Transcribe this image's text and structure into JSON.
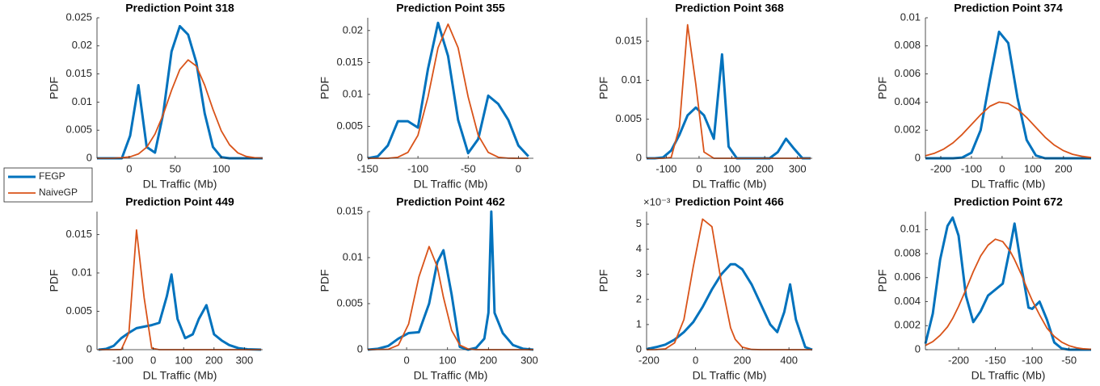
{
  "chart_data": [
    {
      "type": "line",
      "title": "Prediction Point 318",
      "xlabel": "DL Traffic (Mb)",
      "ylabel": "PDF",
      "x": [
        -35,
        -26,
        -17,
        -8,
        1,
        10,
        19,
        28,
        37,
        46,
        55,
        64,
        73,
        82,
        91,
        100,
        109,
        118,
        127,
        136,
        145
      ],
      "xlim": [
        -35,
        145
      ],
      "xticks": [
        0,
        50,
        100
      ],
      "ylim": [
        0,
        0.025
      ],
      "yticks": [
        0,
        0.005,
        0.01,
        0.015,
        0.02,
        0.025
      ],
      "series": [
        {
          "name": "FEGP",
          "color": "#0072bd",
          "values": [
            0,
            0,
            0,
            0,
            0.004,
            0.013,
            0.002,
            0.001,
            0.008,
            0.019,
            0.0235,
            0.022,
            0.017,
            0.008,
            0.002,
            0.0002,
            0,
            0,
            0,
            0,
            0
          ]
        },
        {
          "name": "NaiveGP",
          "color": "#d95319",
          "values": [
            0,
            0,
            1e-05,
            0.0001,
            0.00026,
            0.00077,
            0.00196,
            0.0043,
            0.0078,
            0.0121,
            0.0158,
            0.0175,
            0.0164,
            0.013,
            0.0087,
            0.0049,
            0.0024,
            0.00096,
            0.00033,
            0.0001,
            3e-05
          ]
        }
      ]
    },
    {
      "type": "line",
      "title": "Prediction Point 355",
      "xlabel": "DL Traffic (Mb)",
      "ylabel": "PDF",
      "x": [
        -150,
        -140,
        -130,
        -120,
        -110,
        -100,
        -90,
        -80,
        -70,
        -60,
        -50,
        -40,
        -30,
        -20,
        -10,
        0,
        10
      ],
      "xlim": [
        -150,
        15
      ],
      "xticks": [
        -150,
        -100,
        -50,
        0
      ],
      "ylim": [
        0,
        0.022
      ],
      "yticks": [
        0,
        0.005,
        0.01,
        0.015,
        0.02
      ],
      "series": [
        {
          "name": "FEGP",
          "color": "#0072bd",
          "values": [
            0,
            0.0003,
            0.002,
            0.0058,
            0.0058,
            0.0048,
            0.014,
            0.0212,
            0.016,
            0.006,
            0.0008,
            0.003,
            0.0098,
            0.0085,
            0.006,
            0.002,
            0.0003
          ]
        },
        {
          "name": "NaiveGP",
          "color": "#d95319",
          "values": [
            0,
            0,
            0,
            0.00016,
            0.00092,
            0.0036,
            0.0096,
            0.0173,
            0.021,
            0.0173,
            0.0096,
            0.0036,
            0.00092,
            0.00016,
            2e-05,
            0,
            0
          ]
        }
      ]
    },
    {
      "type": "line",
      "title": "Prediction Point 368",
      "xlabel": "DL Traffic (Mb)",
      "ylabel": "PDF",
      "x": [
        -160,
        -135,
        -110,
        -85,
        -60,
        -35,
        -10,
        15,
        45,
        70,
        90,
        115,
        140,
        165,
        190,
        215,
        240,
        265,
        290,
        315,
        340
      ],
      "xlim": [
        -160,
        345
      ],
      "xticks": [
        -100,
        0,
        100,
        200,
        300
      ],
      "ylim": [
        0,
        0.018
      ],
      "yticks": [
        0,
        0.005,
        0.01,
        0.015
      ],
      "series": [
        {
          "name": "FEGP",
          "color": "#0072bd",
          "values": [
            0,
            0,
            0.0001,
            0.001,
            0.003,
            0.0055,
            0.0065,
            0.0055,
            0.0025,
            0.0133,
            0.0015,
            0,
            0,
            0,
            0,
            0,
            0.0008,
            0.0025,
            0.0012,
            0,
            0
          ]
        },
        {
          "name": "NaiveGP",
          "color": "#d95319",
          "values": [
            0,
            0,
            0,
            0.0001,
            0.004,
            0.0171,
            0.0095,
            0.0008,
            0,
            0,
            0,
            0,
            0,
            0,
            0,
            0,
            0,
            0,
            0,
            0,
            0
          ]
        }
      ]
    },
    {
      "type": "line",
      "title": "Prediction Point 374",
      "xlabel": "DL Traffic (Mb)",
      "ylabel": "PDF",
      "x": [
        -250,
        -220,
        -190,
        -160,
        -130,
        -100,
        -70,
        -40,
        -10,
        20,
        50,
        80,
        110,
        140,
        170,
        200,
        230,
        260,
        290
      ],
      "xlim": [
        -250,
        290
      ],
      "xticks": [
        -200,
        -100,
        0,
        100,
        200
      ],
      "ylim": [
        0,
        0.01
      ],
      "yticks": [
        0,
        0.002,
        0.004,
        0.006,
        0.008,
        0.01
      ],
      "series": [
        {
          "name": "FEGP",
          "color": "#0072bd",
          "values": [
            0,
            0,
            0,
            0,
            5e-05,
            0.0004,
            0.002,
            0.0056,
            0.009,
            0.0082,
            0.0043,
            0.0013,
            0.0002,
            0,
            0,
            0,
            0,
            0,
            0
          ]
        },
        {
          "name": "NaiveGP",
          "color": "#d95319",
          "values": [
            0.00018,
            0.00036,
            0.00066,
            0.0011,
            0.0017,
            0.0024,
            0.0031,
            0.0037,
            0.004,
            0.0039,
            0.0035,
            0.0029,
            0.0022,
            0.0015,
            0.00094,
            0.00054,
            0.00028,
            0.00014,
            6e-05
          ]
        }
      ]
    },
    {
      "type": "line",
      "title": "Prediction Point 449",
      "xlabel": "DL Traffic (Mb)",
      "ylabel": "PDF",
      "x": [
        -180,
        -155,
        -130,
        -105,
        -80,
        -55,
        -30,
        -5,
        20,
        45,
        60,
        80,
        105,
        130,
        150,
        175,
        200,
        225,
        250,
        280,
        310,
        355
      ],
      "xlim": [
        -185,
        360
      ],
      "xticks": [
        -100,
        0,
        100,
        200,
        300
      ],
      "ylim": [
        0,
        0.018
      ],
      "yticks": [
        0,
        0.005,
        0.01,
        0.015
      ],
      "series": [
        {
          "name": "FEGP",
          "color": "#0072bd",
          "values": [
            0,
            0.0001,
            0.0005,
            0.0015,
            0.0022,
            0.0028,
            0.003,
            0.0032,
            0.0035,
            0.007,
            0.0098,
            0.004,
            0.0015,
            0.002,
            0.004,
            0.0058,
            0.002,
            0.0012,
            0.0006,
            0.0002,
            5e-05,
            0
          ]
        },
        {
          "name": "NaiveGP",
          "color": "#d95319",
          "values": [
            0,
            0,
            0,
            2e-05,
            0.0022,
            0.0156,
            0.0068,
            0.0002,
            0,
            0,
            0,
            0,
            0,
            0,
            0,
            0,
            0,
            0,
            0,
            0,
            0,
            0
          ]
        }
      ]
    },
    {
      "type": "line",
      "title": "Prediction Point 462",
      "xlabel": "DL Traffic (Mb)",
      "ylabel": "PDF",
      "x": [
        -95,
        -70,
        -45,
        -20,
        5,
        30,
        55,
        75,
        90,
        110,
        130,
        150,
        170,
        190,
        200,
        207,
        215,
        235,
        260,
        285,
        310
      ],
      "xlim": [
        -95,
        310
      ],
      "xticks": [
        0,
        100,
        200,
        300
      ],
      "ylim": [
        0,
        0.015
      ],
      "yticks": [
        0,
        0.005,
        0.01,
        0.015
      ],
      "series": [
        {
          "name": "FEGP",
          "color": "#0072bd",
          "values": [
            0,
            0.0001,
            0.0004,
            0.0012,
            0.0018,
            0.0019,
            0.005,
            0.0095,
            0.0108,
            0.006,
            0.0003,
            0,
            0.0002,
            0.0012,
            0.004,
            0.015,
            0.004,
            0.0018,
            0.0005,
            0.0001,
            0
          ]
        },
        {
          "name": "NaiveGP",
          "color": "#d95319",
          "values": [
            0,
            2e-05,
            4e-05,
            0.0005,
            0.0028,
            0.0079,
            0.0112,
            0.009,
            0.0057,
            0.0021,
            0.0005,
            8e-05,
            0,
            0,
            0,
            0,
            0,
            0,
            0,
            0,
            0
          ]
        }
      ]
    },
    {
      "type": "line",
      "title": "Prediction Point 466",
      "xlabel": "DL Traffic (Mb)",
      "ylabel": "PDF",
      "y_multiplier": "×10⁻³",
      "x": [
        -210,
        -170,
        -130,
        -90,
        -50,
        -10,
        30,
        70,
        110,
        150,
        170,
        200,
        240,
        280,
        320,
        350,
        380,
        405,
        430,
        470,
        500
      ],
      "xlim": [
        -210,
        500
      ],
      "xticks": [
        -200,
        0,
        200,
        400
      ],
      "ylim": [
        0,
        0.0055
      ],
      "yticks": [
        0,
        {
          "value": 0.001,
          "label": "1"
        },
        {
          "value": 0.002,
          "label": "2"
        },
        {
          "value": 0.003,
          "label": "3"
        },
        {
          "value": 0.004,
          "label": "4"
        },
        {
          "value": 0.005,
          "label": "5"
        }
      ],
      "series": [
        {
          "name": "FEGP",
          "color": "#0072bd",
          "values": [
            2e-05,
            0.0001,
            0.0002,
            0.0004,
            0.0007,
            0.0011,
            0.0017,
            0.0024,
            0.003,
            0.0034,
            0.0034,
            0.0032,
            0.0026,
            0.0018,
            0.001,
            0.0007,
            0.0015,
            0.0026,
            0.0012,
            0.0001,
            0
          ]
        },
        {
          "name": "NaiveGP",
          "color": "#d95319",
          "values": [
            0,
            3e-06,
            3e-05,
            0.00027,
            0.0012,
            0.0033,
            0.0052,
            0.0049,
            0.0027,
            0.00087,
            0.00041,
            0.0001,
            1e-05,
            0,
            0,
            0,
            0,
            0,
            0,
            0,
            0
          ]
        }
      ]
    },
    {
      "type": "line",
      "title": "Prediction Point 672",
      "xlabel": "DL Traffic (Mb)",
      "ylabel": "PDF",
      "x": [
        -245,
        -235,
        -225,
        -215,
        -208,
        -200,
        -190,
        -180,
        -170,
        -160,
        -150,
        -140,
        -130,
        -124,
        -115,
        -105,
        -100,
        -90,
        -80,
        -70,
        -60,
        -50,
        -40,
        -30,
        -20
      ],
      "xlim": [
        -245,
        -20
      ],
      "xticks": [
        -200,
        -150,
        -100,
        -50
      ],
      "ylim": [
        0,
        0.0115
      ],
      "yticks": [
        0,
        0.002,
        0.004,
        0.006,
        0.008,
        0.01
      ],
      "series": [
        {
          "name": "FEGP",
          "color": "#0072bd",
          "values": [
            0.0005,
            0.003,
            0.0075,
            0.0103,
            0.011,
            0.0095,
            0.0045,
            0.0023,
            0.0032,
            0.0045,
            0.005,
            0.0055,
            0.0085,
            0.0105,
            0.007,
            0.0035,
            0.0034,
            0.004,
            0.0025,
            0.0006,
            0.0001,
            0,
            0,
            0,
            0
          ]
        },
        {
          "name": "NaiveGP",
          "color": "#d95319",
          "values": [
            0.00035,
            0.00067,
            0.0012,
            0.0019,
            0.0026,
            0.0036,
            0.005,
            0.0065,
            0.0078,
            0.0087,
            0.0092,
            0.009,
            0.0082,
            0.0075,
            0.0063,
            0.0048,
            0.0041,
            0.0029,
            0.0018,
            0.0011,
            0.00063,
            0.00033,
            0.00016,
            7e-05,
            3e-05
          ]
        }
      ]
    }
  ]
}
